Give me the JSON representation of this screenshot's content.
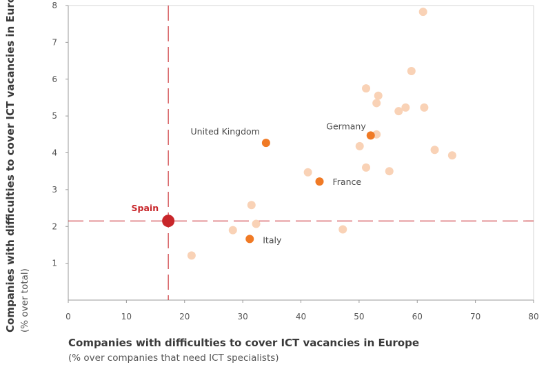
{
  "chart_data": {
    "type": "scatter",
    "xlabel": "Companies with difficulties to cover ICT vacancies in Europe",
    "xlabel_sub": "(% over companies that need ICT specialists)",
    "ylabel": "Companies with difficulties to cover ICT vacancies in Europe",
    "ylabel_sub": "(% over total)",
    "xlim": [
      0,
      80
    ],
    "ylim": [
      0,
      8
    ],
    "x_ticks": [
      "0",
      "10",
      "20",
      "30",
      "40",
      "50",
      "60",
      "70",
      "80"
    ],
    "y_ticks": [
      "1",
      "2",
      "3",
      "4",
      "5",
      "6",
      "7",
      "8"
    ],
    "reference_lines": {
      "x": 17.2,
      "y": 2.15
    },
    "colors": {
      "background_points": "#f9d2b6",
      "labeled_points": "#f07a25",
      "highlight": "#c8262a",
      "axis": "#9a9a9a"
    },
    "highlight": {
      "label": "Spain",
      "x": 17.2,
      "y": 2.15
    },
    "labeled_points": [
      {
        "label": "United Kingdom",
        "x": 34.0,
        "y": 4.27
      },
      {
        "label": "Germany",
        "x": 52.0,
        "y": 4.47
      },
      {
        "label": "France",
        "x": 43.2,
        "y": 3.22
      },
      {
        "label": "Italy",
        "x": 31.2,
        "y": 1.66
      }
    ],
    "other_points": [
      {
        "x": 61.0,
        "y": 7.83
      },
      {
        "x": 59.0,
        "y": 6.22
      },
      {
        "x": 51.2,
        "y": 5.75
      },
      {
        "x": 53.3,
        "y": 5.55
      },
      {
        "x": 53.0,
        "y": 5.35
      },
      {
        "x": 58.0,
        "y": 5.23
      },
      {
        "x": 61.2,
        "y": 5.23
      },
      {
        "x": 56.8,
        "y": 5.13
      },
      {
        "x": 53.0,
        "y": 4.5
      },
      {
        "x": 50.1,
        "y": 4.18
      },
      {
        "x": 63.0,
        "y": 4.08
      },
      {
        "x": 66.0,
        "y": 3.93
      },
      {
        "x": 51.2,
        "y": 3.6
      },
      {
        "x": 55.2,
        "y": 3.5
      },
      {
        "x": 41.2,
        "y": 3.47
      },
      {
        "x": 31.5,
        "y": 2.58
      },
      {
        "x": 32.3,
        "y": 2.07
      },
      {
        "x": 28.3,
        "y": 1.9
      },
      {
        "x": 47.2,
        "y": 1.92
      },
      {
        "x": 21.2,
        "y": 1.21
      }
    ]
  }
}
